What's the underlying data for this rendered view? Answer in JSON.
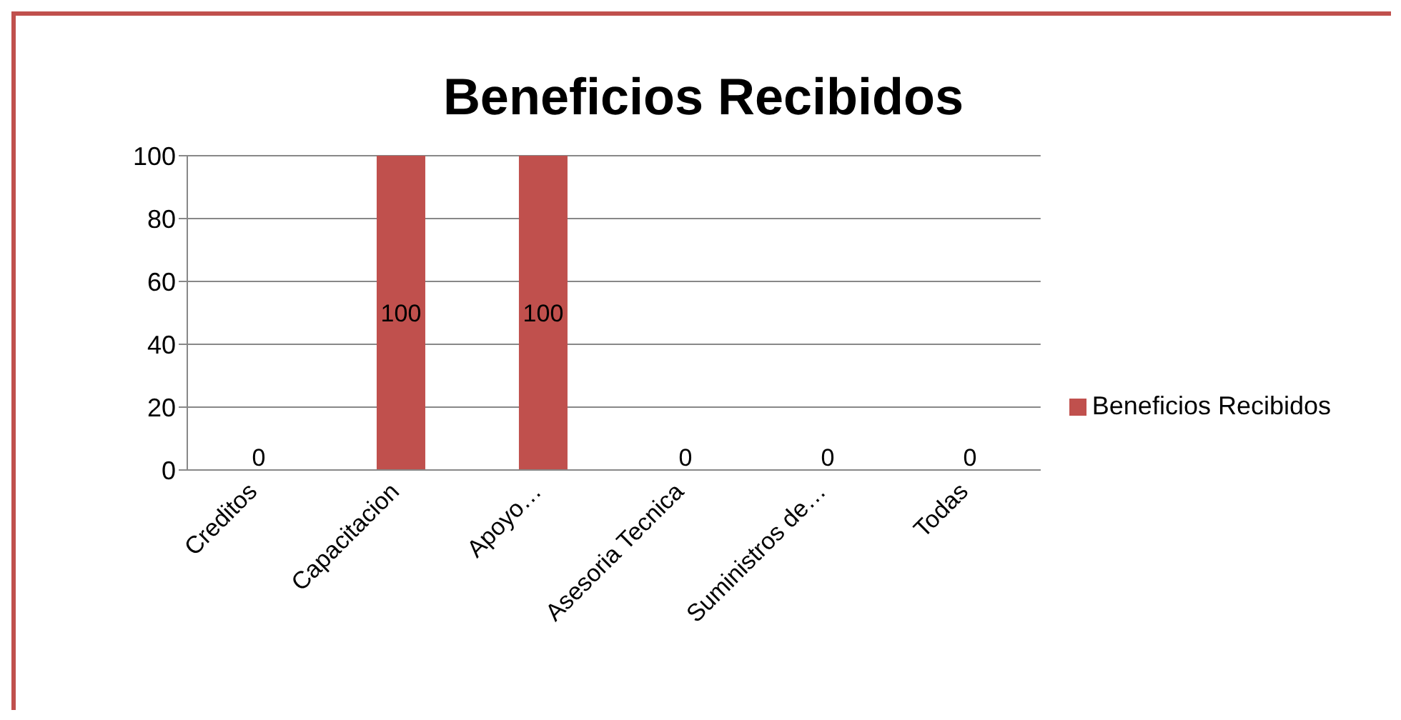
{
  "chart_data": {
    "type": "bar",
    "title": "Beneficios Recibidos",
    "categories": [
      "Creditos",
      "Capacitacion",
      "Apoyo…",
      "Asesoria Tecnica",
      "Suministros de…",
      "Todas"
    ],
    "series": [
      {
        "name": "Beneficios Recibidos",
        "color": "#c0504d",
        "values": [
          0,
          100,
          100,
          0,
          0,
          0
        ]
      }
    ],
    "ylim": [
      0,
      100
    ],
    "yticks": [
      0,
      20,
      40,
      60,
      80,
      100
    ],
    "grid": "y",
    "legend": "right",
    "data_labels": true
  }
}
